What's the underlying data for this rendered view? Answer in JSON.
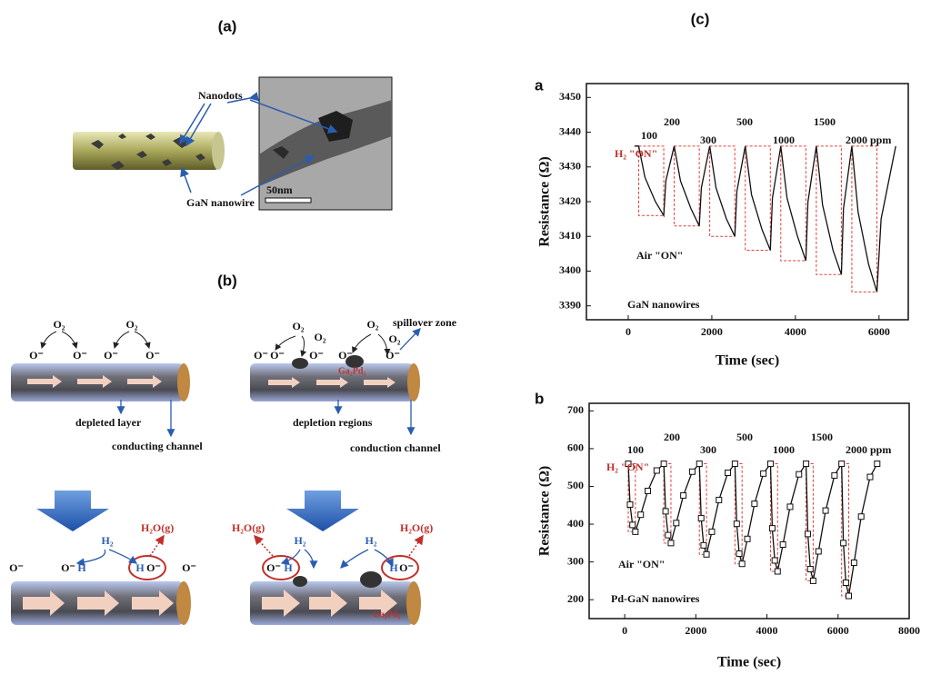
{
  "panels": {
    "a": "(a)",
    "b": "(b)",
    "c": "(c)"
  },
  "diagram_a": {
    "nanodots": "Nanodots",
    "nanowire": "GaN nanowire",
    "scale_bar": "50nm"
  },
  "diagram_b": {
    "top_left": {
      "o2": [
        "O₂",
        "O₂"
      ],
      "ions": [
        "O⁻",
        "O⁻",
        "O⁻",
        "O⁻"
      ],
      "layer": "depleted layer",
      "channel": "conducting channel"
    },
    "top_right": {
      "o2": [
        "O₂",
        "O₂",
        "O₂",
        "O₂"
      ],
      "ions": [
        "O⁻",
        "O⁻",
        "O⁻",
        "O⁻",
        "O⁻"
      ],
      "spillover": "spillover zone",
      "alloy": "Ga₂Pd₅",
      "regions": "depletion regions",
      "channel": "conduction channel"
    },
    "bottom_left": {
      "ions": [
        "O⁻",
        "O⁻",
        "H",
        "H",
        "O⁻",
        "O⁻"
      ],
      "h2": "H₂",
      "water": "H₂O(g)"
    },
    "bottom_right": {
      "ions": [
        "O⁻",
        "H",
        "H",
        "O⁻"
      ],
      "h2": [
        "H₂",
        "H₂"
      ],
      "water": [
        "H₂O(g)",
        "H₂O(g)"
      ],
      "alloy": "Ga₂Pd₅"
    }
  },
  "chart_data": [
    {
      "type": "line",
      "label": "a",
      "xlabel": "Time (sec)",
      "ylabel": "Resistance (Ω)",
      "xlim": [
        -1000,
        6700
      ],
      "ylim": [
        3386,
        3454
      ],
      "xticks": [
        0,
        2000,
        4000,
        6000
      ],
      "yticks": [
        3390,
        3400,
        3410,
        3420,
        3430,
        3440,
        3450
      ],
      "x": [
        150,
        250,
        400,
        650,
        850,
        900,
        1100,
        1250,
        1500,
        1700,
        1750,
        1950,
        2100,
        2350,
        2550,
        2600,
        2800,
        2950,
        3200,
        3400,
        3450,
        3650,
        3800,
        4050,
        4250,
        4300,
        4500,
        4650,
        4900,
        5100,
        5150,
        5350,
        5500,
        5750,
        5950,
        6050,
        6400
      ],
      "series": [
        {
          "name": "GaN nanowires",
          "color": "#111111",
          "values": [
            3436,
            3436,
            3427,
            3420,
            3416,
            3426,
            3436,
            3426,
            3418,
            3413,
            3424,
            3436,
            3424,
            3415,
            3410,
            3423,
            3436,
            3422,
            3412,
            3406,
            3421,
            3436,
            3421,
            3410,
            3403,
            3420,
            3436,
            3419,
            3406,
            3399,
            3418,
            3436,
            3417,
            3402,
            3394,
            3415,
            3436
          ]
        }
      ],
      "marker": "none",
      "box_color": "#e0403a",
      "annotations": [
        "100",
        "200",
        "300",
        "500",
        "1000",
        "1500",
        "2000 ppm"
      ],
      "on_label": "H₂ \"ON\"",
      "off_label": "Air \"ON\""
    },
    {
      "type": "line",
      "label": "b",
      "xlabel": "Time (sec)",
      "ylabel": "Resistance (Ω)",
      "xlim": [
        -1000,
        8000
      ],
      "ylim": [
        150,
        720
      ],
      "xticks": [
        0,
        2000,
        4000,
        6000,
        8000
      ],
      "yticks": [
        200,
        300,
        400,
        500,
        600,
        700
      ],
      "x": [
        100,
        150,
        220,
        300,
        450,
        650,
        900,
        1100,
        1150,
        1220,
        1300,
        1450,
        1650,
        1900,
        2100,
        2150,
        2220,
        2300,
        2450,
        2650,
        2900,
        3100,
        3150,
        3220,
        3300,
        3450,
        3650,
        3900,
        4100,
        4150,
        4220,
        4300,
        4450,
        4650,
        4900,
        5100,
        5150,
        5220,
        5300,
        5450,
        5650,
        5900,
        6100,
        6150,
        6220,
        6300,
        6450,
        6650,
        6900,
        7100
      ],
      "series": [
        {
          "name": "Pd-GaN nanowires",
          "color": "#111111",
          "values": [
            560,
            452,
            398,
            380,
            425,
            488,
            542,
            560,
            434,
            371,
            350,
            403,
            476,
            539,
            560,
            416,
            344,
            320,
            380,
            464,
            536,
            560,
            401,
            322,
            295,
            361,
            454,
            534,
            560,
            389,
            304,
            275,
            346,
            446,
            532,
            560,
            374,
            281,
            250,
            328,
            436,
            529,
            560,
            350,
            245,
            210,
            298,
            420,
            525,
            560
          ]
        }
      ],
      "marker": "square",
      "box_color": "#e0403a",
      "annotations": [
        "100",
        "200",
        "300",
        "500",
        "1000",
        "1500",
        "2000 ppm"
      ],
      "on_label": "H₂ \"ON\"",
      "off_label": "Air \"ON\""
    }
  ]
}
